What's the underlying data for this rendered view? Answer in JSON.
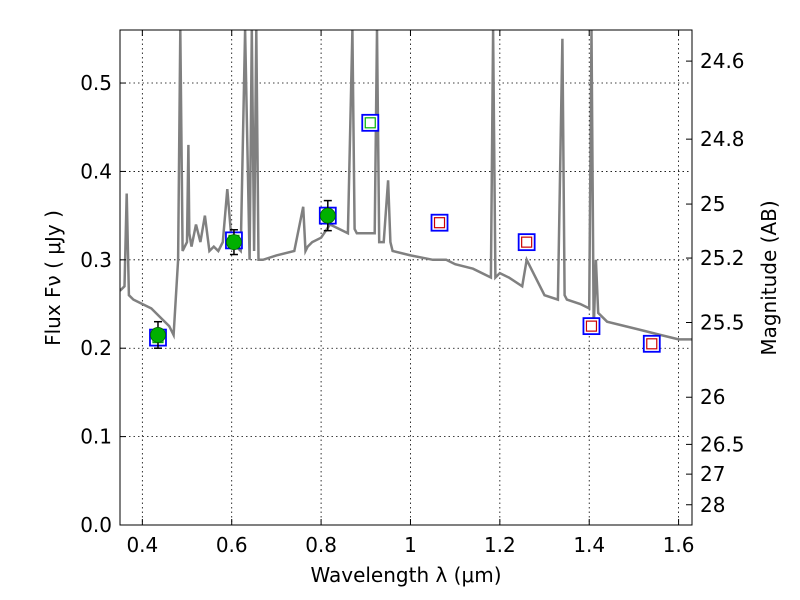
{
  "chart_data": {
    "type": "scatter",
    "xlabel": "Wavelength  λ (μm)",
    "ylabel": "Flux  Fν  ( μJy )",
    "y2label": "Magnitude (AB)",
    "xlim": [
      0.35,
      1.63
    ],
    "ylim": [
      0.0,
      0.56
    ],
    "grid": true,
    "x_ticks": [
      "0.4",
      "0.6",
      "0.8",
      "1",
      "1.2",
      "1.4",
      "1.6"
    ],
    "y_ticks": [
      "0.0",
      "0.1",
      "0.2",
      "0.3",
      "0.4",
      "0.5"
    ],
    "mag_ticks": [
      "24.6",
      "24.8",
      "25",
      "25.2",
      "25.5",
      "26",
      "26.5",
      "27",
      "28"
    ],
    "colors": {
      "spectrum": "#808080",
      "observed_fill": "#00b000",
      "model_box": "#0000ff",
      "model_inner_green": "#00b000",
      "model_inner_red": "#cc0000"
    },
    "series": [
      {
        "type": "line",
        "x": [
          0.35,
          0.36,
          0.365,
          0.37,
          0.38,
          0.4,
          0.42,
          0.44,
          0.46,
          0.47,
          0.48,
          0.485,
          0.49,
          0.5,
          0.503,
          0.505,
          0.51,
          0.52,
          0.53,
          0.54,
          0.55,
          0.56,
          0.57,
          0.58,
          0.59,
          0.6,
          0.62,
          0.63,
          0.64,
          0.645,
          0.65,
          0.655,
          0.66,
          0.67,
          0.7,
          0.74,
          0.76,
          0.765,
          0.77,
          0.78,
          0.8,
          0.82,
          0.84,
          0.86,
          0.87,
          0.875,
          0.88,
          0.9,
          0.92,
          0.925,
          0.93,
          0.94,
          0.95,
          0.955,
          0.96,
          1.0,
          1.05,
          1.08,
          1.1,
          1.14,
          1.18,
          1.185,
          1.19,
          1.2,
          1.22,
          1.25,
          1.26,
          1.3,
          1.33,
          1.34,
          1.345,
          1.35,
          1.38,
          1.4,
          1.405,
          1.41,
          1.415,
          1.42,
          1.44,
          1.48,
          1.52,
          1.56,
          1.6,
          1.63
        ],
        "y": [
          0.265,
          0.27,
          0.375,
          0.26,
          0.255,
          0.25,
          0.245,
          0.235,
          0.225,
          0.215,
          0.3,
          0.56,
          0.31,
          0.32,
          0.43,
          0.33,
          0.315,
          0.34,
          0.32,
          0.35,
          0.31,
          0.315,
          0.31,
          0.32,
          0.38,
          0.32,
          0.31,
          0.56,
          0.3,
          0.56,
          0.31,
          0.56,
          0.3,
          0.3,
          0.305,
          0.31,
          0.36,
          0.31,
          0.315,
          0.32,
          0.325,
          0.34,
          0.335,
          0.33,
          0.56,
          0.335,
          0.33,
          0.33,
          0.33,
          0.56,
          0.32,
          0.32,
          0.39,
          0.32,
          0.31,
          0.305,
          0.3,
          0.3,
          0.295,
          0.29,
          0.28,
          0.56,
          0.28,
          0.285,
          0.28,
          0.27,
          0.3,
          0.26,
          0.255,
          0.55,
          0.26,
          0.255,
          0.25,
          0.245,
          0.56,
          0.22,
          0.3,
          0.24,
          0.23,
          0.225,
          0.22,
          0.215,
          0.21,
          0.21
        ]
      },
      {
        "type": "errorbar",
        "x": [
          0.435,
          0.605,
          0.815
        ],
        "y": [
          0.215,
          0.32,
          0.35
        ],
        "yerr": [
          0.015,
          0.014,
          0.017
        ]
      },
      {
        "type": "model-green",
        "x": [
          0.435,
          0.605,
          0.815,
          0.91
        ],
        "y": [
          0.212,
          0.322,
          0.35,
          0.455
        ]
      },
      {
        "type": "model-red",
        "x": [
          1.065,
          1.26,
          1.405,
          1.54
        ],
        "y": [
          0.342,
          0.32,
          0.225,
          0.205
        ]
      }
    ]
  }
}
